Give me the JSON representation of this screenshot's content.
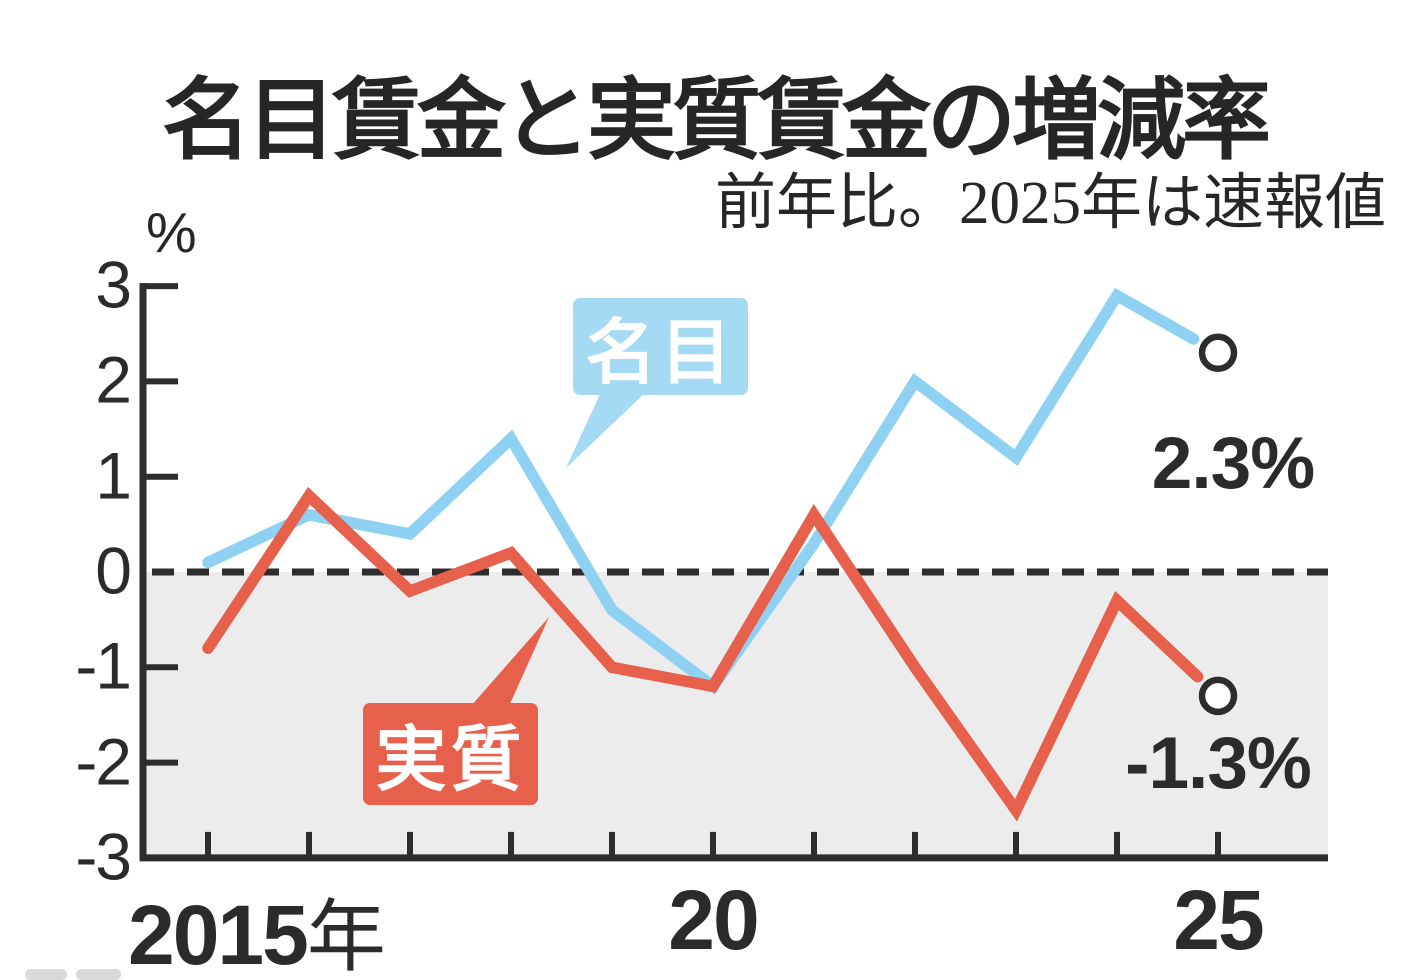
{
  "title": "名目賃金と実質賃金の増減率",
  "subtitle": "前年比。2025年は速報値",
  "unit_label": "%",
  "colors": {
    "nominal_line": "#8ed1f2",
    "nominal_box": "#a5daf5",
    "real_line": "#e7604b",
    "real_box": "#e7604b",
    "negative_band": "#ececec",
    "axis": "#2d2d2d",
    "text": "#262626",
    "marker_fill": "#ffffff"
  },
  "chart_data": {
    "type": "line",
    "x": [
      2015,
      2016,
      2017,
      2018,
      2019,
      2020,
      2021,
      2022,
      2023,
      2024,
      2025
    ],
    "series": [
      {
        "name": "名目",
        "values": [
          0.1,
          0.6,
          0.4,
          1.4,
          -0.4,
          -1.2,
          0.3,
          2.0,
          1.2,
          2.9,
          2.3
        ],
        "end_label": "2.3%",
        "color_key": "nominal_line"
      },
      {
        "name": "実質",
        "values": [
          -0.8,
          0.8,
          -0.2,
          0.2,
          -1.0,
          -1.2,
          0.6,
          -1.0,
          -2.5,
          -0.3,
          -1.3
        ],
        "end_label": "-1.3%",
        "color_key": "real_line"
      }
    ],
    "ylabel": "%",
    "ylim": [
      -3,
      3
    ],
    "yticks": [
      3,
      2,
      1,
      0,
      -1,
      -2,
      -3
    ],
    "ytick_labels": [
      "3",
      "2",
      "1",
      "0",
      "-1",
      "-2",
      "-3"
    ],
    "xtick_labels": [
      {
        "year": 2015,
        "text": "2015",
        "suffix": "年"
      },
      {
        "year": 2020,
        "text": "20",
        "suffix": ""
      },
      {
        "year": 2025,
        "text": "25",
        "suffix": ""
      }
    ],
    "zero_line": "dashed",
    "negative_area_shaded": true,
    "legend_position": "inline-callouts"
  }
}
